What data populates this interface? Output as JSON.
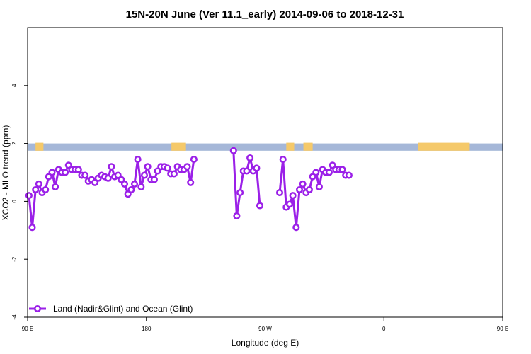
{
  "chart_data": {
    "type": "line",
    "title": "15N-20N June (Ver 11.1_early)   2014-09-06 to 2018-12-31",
    "xlabel": "Longitude (deg E)",
    "ylabel": "XCO2 - MLO trend (ppm)",
    "xlim": [
      90,
      450
    ],
    "ylim": [
      -4,
      6
    ],
    "x_ticks": [
      {
        "value": 90,
        "label": "90 E"
      },
      {
        "value": 180,
        "label": "180"
      },
      {
        "value": 270,
        "label": "90 W"
      },
      {
        "value": 360,
        "label": "0"
      },
      {
        "value": 450,
        "label": "90 E"
      },
      {
        "value": 540,
        "label": "180"
      }
    ],
    "y_ticks": [
      -4,
      -2,
      0,
      2,
      4
    ],
    "y_tick_labels": [
      "-4",
      "-2",
      "0",
      "2",
      "4"
    ],
    "band": {
      "y_min": 1.75,
      "y_max": 2.0,
      "ocean_color": "#a5b7d8",
      "land_color": "#f5c96a"
    },
    "land_segments": [
      [
        96,
        102
      ],
      [
        199,
        210
      ],
      [
        286,
        292
      ],
      [
        299,
        306
      ],
      [
        386,
        425
      ],
      [
        481,
        489
      ],
      [
        538,
        544
      ]
    ],
    "legend": {
      "label": "Land (Nadir&Glint) and Ocean (Glint)",
      "position": "bottom-left"
    },
    "series_color": "#9b20e8",
    "series": [
      {
        "name": "Land (Nadir&Glint) and Ocean (Glint)",
        "x": [
          91,
          93.5,
          96,
          98.5,
          101,
          103.5,
          106,
          108.5,
          111,
          113.5,
          116,
          118.5,
          121,
          123.5,
          126,
          128.5,
          131,
          133.5,
          136,
          138.5,
          141,
          143.5,
          146,
          148.5,
          151,
          153.5,
          156,
          158.5,
          161,
          163.5,
          166,
          168.5,
          171,
          173.5,
          176,
          178.5,
          181,
          183.5,
          186,
          188.5,
          191,
          193.5,
          196,
          198.5,
          201,
          203.5,
          206,
          208.5,
          211,
          213.5,
          216,
          218.5,
          221,
          223.5,
          226,
          228.5,
          231,
          233.5,
          236,
          238.5,
          241,
          243.5,
          246,
          248.5,
          251,
          253.5,
          256,
          258.5,
          261,
          263.5,
          266,
          268.5,
          271,
          273.5,
          276,
          278.5,
          281,
          283.5,
          286,
          288.5,
          291,
          293.5,
          296,
          298.5,
          301,
          303.5,
          306,
          308.5,
          311,
          313.5,
          316,
          318.5,
          321,
          323.5,
          326,
          328.5,
          331,
          333.5,
          336,
          338.5,
          341,
          343.5,
          346,
          348.5,
          351,
          353.5,
          356,
          358.5,
          361,
          363.5,
          366,
          368.5,
          371,
          373.5,
          376,
          378.5,
          381,
          383.5,
          386,
          388.5,
          391,
          393.5,
          396,
          398.5,
          401,
          403.5,
          406,
          408.5,
          411,
          413.5,
          416,
          418.5,
          421,
          423.5,
          426,
          428.5,
          431,
          433.5,
          436,
          438.5,
          441,
          443.5,
          446,
          448.5
        ],
        "y": [
          0.2,
          -0.9,
          0.4,
          0.6,
          0.3,
          0.4,
          0.85,
          1.0,
          0.5,
          1.1,
          1.0,
          1.0,
          1.25,
          1.1,
          1.1,
          1.1,
          0.9,
          0.9,
          0.7,
          0.75,
          0.65,
          0.8,
          0.9,
          0.85,
          0.8,
          1.2,
          0.85,
          0.9,
          0.75,
          0.6,
          0.25,
          0.4,
          0.6,
          1.45,
          0.5,
          0.9,
          1.2,
          0.75,
          0.75,
          1.05,
          1.2,
          1.2,
          1.15,
          0.95,
          0.95,
          1.2,
          1.1,
          1.1,
          1.2,
          0.65,
          1.45,
          null,
          null,
          null,
          null,
          null,
          null,
          null,
          null,
          null,
          null,
          null,
          1.75,
          -0.5,
          0.3,
          1.05,
          1.05,
          1.5,
          1.05,
          1.15,
          -0.15,
          null,
          null,
          null,
          null,
          null,
          0.3,
          1.45,
          -0.2,
          -0.1,
          0.2,
          -0.9,
          0.4,
          0.6,
          0.3,
          0.4,
          0.85,
          1.0,
          0.5,
          1.1,
          1.0,
          1.0,
          1.25,
          1.1,
          1.1,
          1.1,
          0.9,
          0.9,
          null,
          null,
          null,
          null,
          null,
          null,
          null,
          null,
          null,
          null,
          null,
          null,
          null,
          null,
          null,
          null,
          null,
          null,
          null,
          null,
          null,
          null,
          null,
          null,
          null,
          null,
          null,
          null,
          null,
          null,
          null,
          null,
          null,
          null,
          null,
          null,
          null,
          null,
          null,
          null,
          null,
          null,
          null,
          null,
          null,
          null
        ]
      }
    ]
  }
}
